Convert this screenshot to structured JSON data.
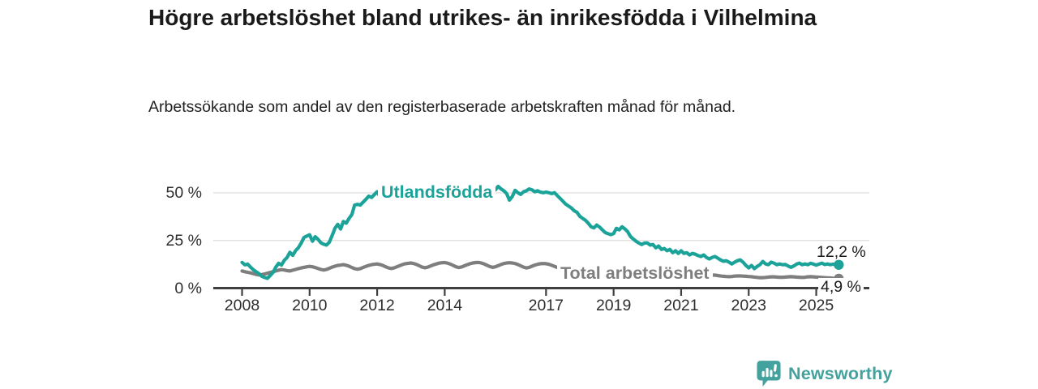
{
  "footer": {
    "brand": "Newsworthy"
  },
  "colors": {
    "teal": "#1BA39A",
    "gray": "#7E7E7E",
    "grid": "#DDDDDD",
    "axis": "#3F3F3F",
    "logo_teal": "#43A29D",
    "text_dark": "#1A1A1A"
  },
  "chart_data": {
    "type": "line",
    "title": "Högre arbetslöshet bland utrikes- än inrikesfödda i Vilhelmina",
    "subtitle": "Arbetssökande som andel av den registerbaserade arbetskraften månad för månad.",
    "x_unit": "month",
    "x_start": 2008.0,
    "x_end": 2025.667,
    "grid": "horizontal",
    "legend_position": "inline-labels",
    "ylim": [
      0,
      57
    ],
    "yticks": [
      {
        "value": 0,
        "label": "0 %"
      },
      {
        "value": 25,
        "label": "25 %"
      },
      {
        "value": 50,
        "label": "50 %"
      }
    ],
    "xticks": [
      {
        "value": 2008,
        "label": "2008"
      },
      {
        "value": 2010,
        "label": "2010"
      },
      {
        "value": 2012,
        "label": "2012"
      },
      {
        "value": 2014,
        "label": "2014"
      },
      {
        "value": 2017,
        "label": "2017"
      },
      {
        "value": 2019,
        "label": "2019"
      },
      {
        "value": 2021,
        "label": "2021"
      },
      {
        "value": 2023,
        "label": "2023"
      },
      {
        "value": 2025,
        "label": "2025"
      }
    ],
    "series": [
      {
        "name": "Utlandsfödda",
        "color": "#1BA39A",
        "end_value": 12.2,
        "end_label": "12,2 %",
        "values": [
          13.5,
          12.2,
          12.6,
          11.0,
          9.6,
          8.6,
          7.6,
          6.2,
          5.6,
          5.1,
          6.6,
          8.2,
          11.0,
          13.0,
          12.1,
          14.6,
          16.1,
          18.8,
          17.2,
          19.6,
          21.2,
          23.6,
          26.6,
          27.3,
          28.0,
          24.6,
          27.0,
          25.6,
          23.8,
          23.0,
          22.6,
          24.1,
          27.6,
          31.4,
          33.5,
          31.0,
          35.0,
          34.1,
          36.6,
          38.6,
          43.6,
          44.0,
          43.6,
          45.1,
          46.6,
          48.3,
          47.6,
          49.1,
          50.6,
          47.9,
          50.1,
          47.6,
          45.6,
          46.6,
          48.1,
          47.1,
          48.6,
          49.6,
          48.1,
          47.1,
          48.6,
          49.6,
          50.6,
          49.1,
          47.6,
          48.6,
          50.1,
          49.1,
          47.6,
          48.1,
          49.6,
          50.6,
          51.1,
          49.6,
          50.6,
          49.1,
          47.7,
          46.7,
          47.7,
          49.1,
          50.1,
          51.1,
          50.1,
          49.1,
          50.1,
          51.6,
          52.6,
          51.1,
          49.6,
          50.6,
          51.6,
          53.4,
          52.1,
          51.1,
          49.6,
          46.2,
          48.1,
          51.3,
          50.1,
          49.2,
          50.6,
          51.1,
          52.1,
          51.6,
          50.6,
          51.1,
          50.4,
          50.1,
          50.4,
          50.1,
          49.6,
          50.1,
          48.6,
          47.1,
          45.6,
          44.1,
          43.1,
          42.1,
          40.6,
          39.8,
          37.7,
          36.6,
          35.6,
          34.1,
          32.2,
          31.6,
          33.1,
          32.1,
          30.6,
          29.2,
          28.6,
          28.1,
          28.6,
          31.4,
          30.6,
          32.2,
          31.1,
          29.6,
          27.1,
          25.8,
          24.6,
          23.6,
          22.9,
          23.7,
          23.7,
          22.6,
          22.9,
          21.2,
          22.1,
          20.3,
          20.8,
          19.6,
          20.3,
          18.6,
          19.6,
          18.2,
          19.6,
          18.2,
          18.6,
          17.4,
          18.2,
          17.8,
          17.1,
          16.6,
          17.4,
          16.1,
          15.3,
          16.1,
          16.6,
          15.7,
          14.8,
          14.1,
          14.4,
          13.6,
          12.7,
          13.6,
          14.4,
          14.8,
          13.6,
          11.9,
          10.6,
          11.9,
          10.2,
          11.4,
          12.3,
          14.0,
          12.7,
          12.3,
          13.6,
          13.1,
          12.3,
          12.7,
          12.3,
          12.4,
          11.6,
          10.9,
          11.6,
          12.6,
          13.1,
          12.3,
          12.7,
          12.3,
          13.0,
          12.6,
          12.1,
          12.6,
          13.1,
          12.4,
          12.7,
          12.3,
          12.6,
          12.4,
          12.2
        ]
      },
      {
        "name": "Total arbetslöshet",
        "color": "#7E7E7E",
        "end_value": 4.9,
        "end_label": "4,9 %",
        "values": [
          9.0,
          8.6,
          8.3,
          8.0,
          7.6,
          7.2,
          6.9,
          7.1,
          7.4,
          7.8,
          8.2,
          8.6,
          9.0,
          9.4,
          9.7,
          9.5,
          9.2,
          9.0,
          9.4,
          9.8,
          10.2,
          10.6,
          10.9,
          11.2,
          11.4,
          11.2,
          10.8,
          10.3,
          9.8,
          9.5,
          9.8,
          10.4,
          11.0,
          11.5,
          11.9,
          12.1,
          12.3,
          12.0,
          11.5,
          10.8,
          10.2,
          9.9,
          10.2,
          10.8,
          11.4,
          11.9,
          12.3,
          12.5,
          12.7,
          12.4,
          11.9,
          11.2,
          10.6,
          10.3,
          10.6,
          11.2,
          11.8,
          12.4,
          12.8,
          13.0,
          13.2,
          12.9,
          12.4,
          11.7,
          11.0,
          10.7,
          11.0,
          11.6,
          12.2,
          12.7,
          13.1,
          13.3,
          13.4,
          13.1,
          12.6,
          11.9,
          11.2,
          10.8,
          11.1,
          11.7,
          12.3,
          12.8,
          13.2,
          13.4,
          13.5,
          13.2,
          12.7,
          12.0,
          11.3,
          10.9,
          11.2,
          11.8,
          12.4,
          12.9,
          13.2,
          13.3,
          13.2,
          12.9,
          12.4,
          11.7,
          11.0,
          10.6,
          10.9,
          11.5,
          12.1,
          12.5,
          12.8,
          12.9,
          12.8,
          12.5,
          12.0,
          11.4,
          10.8,
          10.5,
          10.8,
          11.3,
          11.8,
          12.1,
          12.3,
          12.2,
          12.0,
          11.7,
          11.2,
          10.6,
          10.1,
          9.8,
          10.0,
          10.4,
          10.8,
          11.0,
          11.1,
          11.0,
          10.8,
          10.5,
          10.1,
          9.6,
          9.2,
          9.0,
          9.2,
          9.5,
          9.8,
          10.0,
          10.1,
          10.0,
          9.8,
          9.6,
          9.4,
          9.2,
          9.0,
          8.8,
          8.7,
          8.5,
          8.3,
          8.0,
          7.8,
          7.6,
          7.4,
          7.2,
          7.0,
          6.9,
          6.8,
          6.7,
          6.8,
          6.9,
          7.0,
          7.0,
          6.9,
          6.8,
          6.8,
          6.6,
          6.4,
          6.2,
          6.1,
          6.0,
          6.1,
          6.3,
          6.4,
          6.4,
          6.3,
          6.2,
          6.1,
          6.0,
          5.8,
          5.6,
          5.5,
          5.5,
          5.6,
          5.8,
          5.9,
          5.9,
          5.8,
          5.7,
          5.7,
          5.8,
          5.9,
          6.0,
          5.9,
          5.8,
          5.7,
          5.6,
          5.7,
          5.9,
          6.0,
          5.9,
          5.8,
          5.7,
          5.6,
          5.5,
          5.4,
          5.3,
          5.2,
          5.0,
          4.9
        ]
      }
    ]
  }
}
